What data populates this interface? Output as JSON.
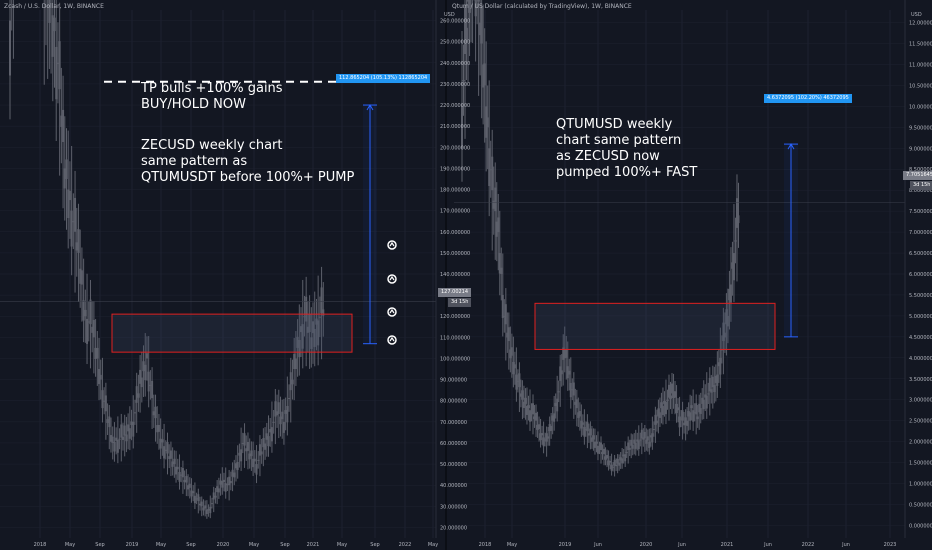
{
  "left_header": "Zcash / U.S. Dollar, 1W, BINANCE",
  "right_header": "Qtum / US Dollar (calculated by TradingView), 1W, BINANCE",
  "left_text": {
    "tp_line1": "TP bulls +100% gains",
    "tp_line2": "BUY/HOLD NOW",
    "desc_line1": "ZECUSD weekly chart",
    "desc_line2": "same pattern as",
    "desc_line3": "QTUMUSDT before 100%+ PUMP"
  },
  "right_text": {
    "line1": "QTUMUSD weekly",
    "line2": "chart same pattern",
    "line3": "as ZECUSD now",
    "line4": "pumped 100%+ FAST"
  },
  "left_measure_label": "112.865204 (105.13%) 112865204",
  "right_measure_label": "4.6372095 (102.20%) 46372095",
  "left_price_tag": "127.00214",
  "left_time_tag": "3d 15h",
  "right_price_tag": "7.7051645",
  "right_time_tag": "3d 15h",
  "left_currency": "USD",
  "right_currency": "USD",
  "colors": {
    "background": "#131722",
    "grid": "#1e2230",
    "text": "#b2b5be",
    "candle": "#5d606b",
    "box": "#e02020",
    "measure": "#2962ff",
    "label_bg": "#2196f3",
    "annotation": "#ffffff"
  },
  "chart_data": [
    {
      "type": "candlestick",
      "title": "Zcash / U.S. Dollar, 1W, BINANCE",
      "x_ticks": [
        "2018",
        "May",
        "Sep",
        "2019",
        "May",
        "Sep",
        "2020",
        "May",
        "Sep",
        "2021",
        "May",
        "Sep",
        "2022",
        "May"
      ],
      "y_ticks": [
        20,
        30,
        40,
        50,
        60,
        70,
        80,
        90,
        100,
        110,
        120,
        130,
        140,
        150,
        160,
        170,
        180,
        190,
        200,
        210,
        220,
        230,
        240,
        250,
        260
      ],
      "ylim": [
        15,
        265
      ],
      "series": [
        {
          "x": [
            -8,
            -4,
            0,
            4,
            8,
            12,
            16,
            20,
            24,
            28,
            32,
            36,
            40,
            44,
            48,
            52,
            56,
            60,
            64,
            68,
            72,
            76,
            80,
            84,
            88,
            92,
            96,
            100,
            104,
            108,
            112,
            116,
            120,
            124,
            128,
            132,
            136,
            140,
            144,
            148,
            152,
            156,
            160,
            164,
            168,
            172,
            176
          ],
          "close": [
            260,
            330,
            400,
            520,
            380,
            280,
            270,
            240,
            190,
            170,
            150,
            120,
            115,
            95,
            75,
            60,
            62,
            64,
            70,
            88,
            100,
            75,
            62,
            55,
            50,
            45,
            40,
            35,
            30,
            28,
            35,
            42,
            40,
            48,
            60,
            55,
            50,
            58,
            65,
            75,
            70,
            85,
            105,
            120,
            110,
            118,
            125
          ]
        }
      ],
      "box_range": [
        103,
        121
      ],
      "measure": {
        "from": 107,
        "to": 220,
        "label": "112.865204 (105.13%) 112865204"
      },
      "target_line": 231,
      "last_price": 127
    },
    {
      "type": "candlestick",
      "title": "Qtum / US Dollar (calculated by TradingView), 1W, BINANCE",
      "x_ticks": [
        "2018",
        "May",
        "2019",
        "Jun",
        "2020",
        "Jun",
        "2021",
        "Jun",
        "2022",
        "Jun",
        "2023"
      ],
      "y_ticks": [
        0.0,
        0.5,
        1.0,
        1.5,
        2.0,
        2.5,
        3.0,
        3.5,
        4.0,
        4.5,
        5.0,
        5.5,
        6.0,
        6.5,
        7.0,
        7.5,
        8.0,
        8.5,
        9.0,
        9.5,
        10.0,
        10.5,
        11.0,
        11.5,
        12.0
      ],
      "ylim": [
        -0.3,
        12.3
      ],
      "series": [
        {
          "x": [
            -8,
            -4,
            0,
            4,
            8,
            12,
            16,
            20,
            24,
            28,
            32,
            36,
            40,
            44,
            48,
            52,
            56,
            60,
            64,
            68,
            72,
            76,
            80,
            84,
            88,
            92,
            96,
            100,
            104,
            108,
            112,
            116,
            120,
            124,
            128,
            132,
            136,
            140,
            144,
            148,
            152,
            156,
            160,
            164,
            168,
            172,
            176
          ],
          "close": [
            10.0,
            12.5,
            14.0,
            12.0,
            10.0,
            8.0,
            7.0,
            5.0,
            4.2,
            3.6,
            3.0,
            2.8,
            2.6,
            2.2,
            2.0,
            2.5,
            3.2,
            4.2,
            3.4,
            2.8,
            2.4,
            2.2,
            2.0,
            1.8,
            1.6,
            1.4,
            1.5,
            1.7,
            1.9,
            2.0,
            2.1,
            2.0,
            2.4,
            2.8,
            3.0,
            3.2,
            2.6,
            2.4,
            2.8,
            2.6,
            3.0,
            3.2,
            3.4,
            4.2,
            5.0,
            6.5,
            7.7
          ]
        }
      ],
      "box_range": [
        4.2,
        5.3
      ],
      "measure": {
        "from": 4.5,
        "to": 9.1,
        "label": "4.6372095 (102.20%) 46372095"
      },
      "last_price": 7.7
    }
  ]
}
